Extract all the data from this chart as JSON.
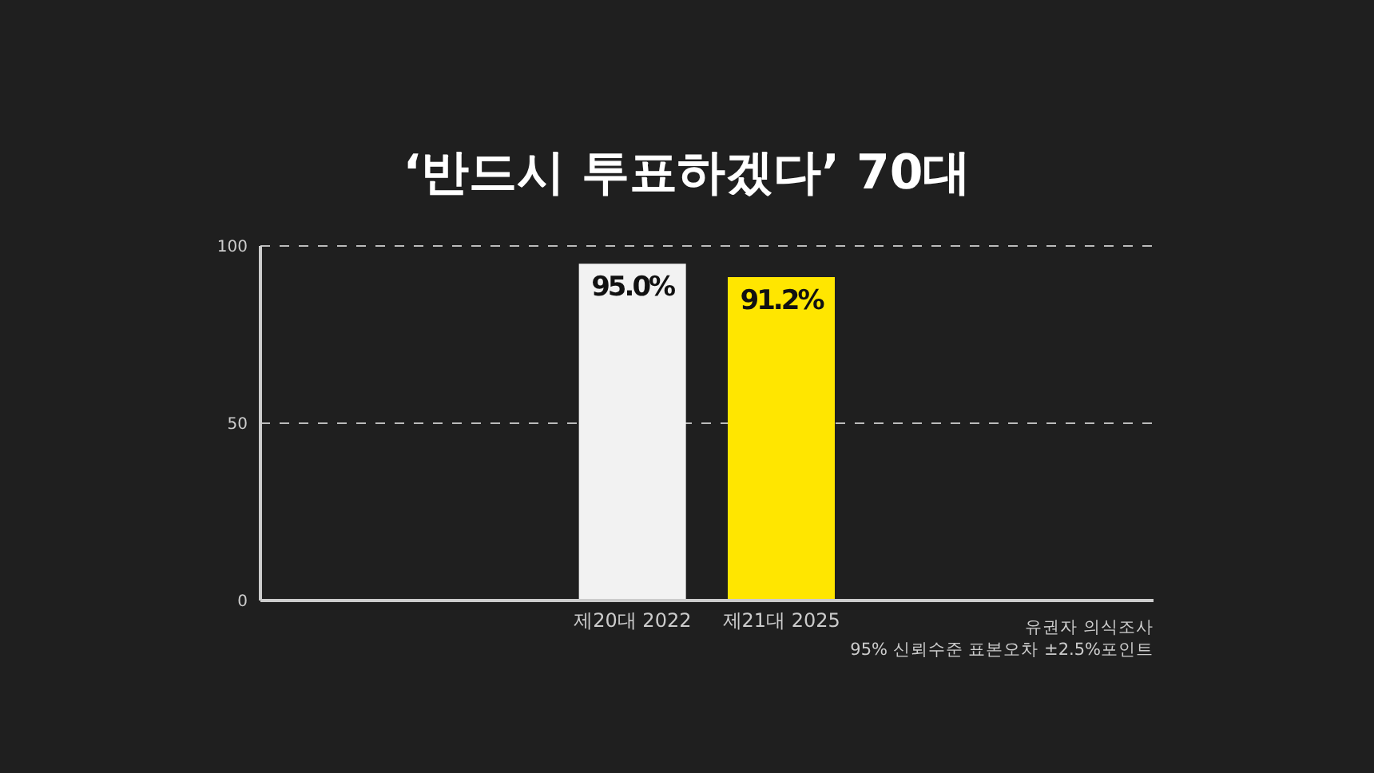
{
  "chart_data": {
    "type": "bar",
    "title": "‘반드시 투표하겠다’ 70대",
    "categories": [
      null,
      null,
      "제20대 2022",
      "제21대 2025",
      null,
      null
    ],
    "values": [
      null,
      null,
      95.0,
      91.2,
      null,
      null
    ],
    "colors": [
      "#f2f2f2",
      "#f2f2f2",
      "#f2f2f2",
      "#ffe600",
      "#ffe600",
      "#ffe600"
    ],
    "value_labels": [
      null,
      null,
      "95.0%",
      "91.2%",
      null,
      null
    ],
    "ylim": [
      0,
      100
    ],
    "yticks": [
      0,
      50,
      100
    ],
    "grid": "y",
    "annotations": [
      "유권자 의식조사",
      "95% 신뢰수준 표본오차  ±2.5%포인트"
    ]
  }
}
